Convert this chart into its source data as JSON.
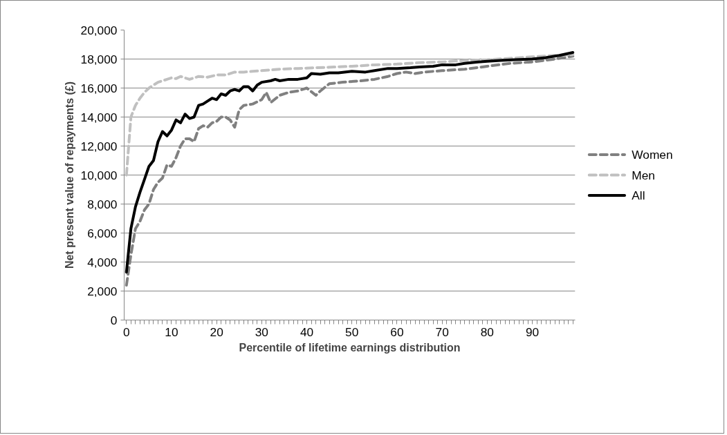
{
  "chart_data": {
    "type": "line",
    "xlabel": "Percentile of lifetime earnings distribution",
    "ylabel": "Net present value of repayments (£)",
    "xlim": [
      -0.5,
      99.5
    ],
    "ylim": [
      0,
      20000
    ],
    "yticks": [
      {
        "value": 0,
        "label": "0"
      },
      {
        "value": 2000,
        "label": "2,000"
      },
      {
        "value": 4000,
        "label": "4,000"
      },
      {
        "value": 6000,
        "label": "6,000"
      },
      {
        "value": 8000,
        "label": "8,000"
      },
      {
        "value": 10000,
        "label": "10,000"
      },
      {
        "value": 12000,
        "label": "12,000"
      },
      {
        "value": 14000,
        "label": "14,000"
      },
      {
        "value": 16000,
        "label": "16,000"
      },
      {
        "value": 18000,
        "label": "18,000"
      },
      {
        "value": 20000,
        "label": "20,000"
      }
    ],
    "xticks": [
      0,
      {
        "value": 1,
        "label": null
      },
      {
        "value": 2,
        "label": null
      },
      {
        "value": 3,
        "label": null
      },
      {
        "value": 4,
        "label": null
      },
      {
        "value": 5,
        "label": null
      },
      {
        "value": 6,
        "label": null
      },
      {
        "value": 7,
        "label": null
      },
      {
        "value": 8,
        "label": null
      },
      {
        "value": 9,
        "label": null
      },
      10,
      {
        "value": 11,
        "label": null
      },
      {
        "value": 12,
        "label": null
      },
      {
        "value": 13,
        "label": null
      },
      {
        "value": 14,
        "label": null
      },
      {
        "value": 15,
        "label": null
      },
      {
        "value": 16,
        "label": null
      },
      {
        "value": 17,
        "label": null
      },
      {
        "value": 18,
        "label": null
      },
      {
        "value": 19,
        "label": null
      },
      20,
      {
        "value": 21,
        "label": null
      },
      {
        "value": 22,
        "label": null
      },
      {
        "value": 23,
        "label": null
      },
      {
        "value": 24,
        "label": null
      },
      {
        "value": 25,
        "label": null
      },
      {
        "value": 26,
        "label": null
      },
      {
        "value": 27,
        "label": null
      },
      {
        "value": 28,
        "label": null
      },
      {
        "value": 29,
        "label": null
      },
      30,
      {
        "value": 31,
        "label": null
      },
      {
        "value": 32,
        "label": null
      },
      {
        "value": 33,
        "label": null
      },
      {
        "value": 34,
        "label": null
      },
      {
        "value": 35,
        "label": null
      },
      {
        "value": 36,
        "label": null
      },
      {
        "value": 37,
        "label": null
      },
      {
        "value": 38,
        "label": null
      },
      {
        "value": 39,
        "label": null
      },
      40,
      {
        "value": 41,
        "label": null
      },
      {
        "value": 42,
        "label": null
      },
      {
        "value": 43,
        "label": null
      },
      {
        "value": 44,
        "label": null
      },
      {
        "value": 45,
        "label": null
      },
      {
        "value": 46,
        "label": null
      },
      {
        "value": 47,
        "label": null
      },
      {
        "value": 48,
        "label": null
      },
      {
        "value": 49,
        "label": null
      },
      50,
      {
        "value": 51,
        "label": null
      },
      {
        "value": 52,
        "label": null
      },
      {
        "value": 53,
        "label": null
      },
      {
        "value": 54,
        "label": null
      },
      {
        "value": 55,
        "label": null
      },
      {
        "value": 56,
        "label": null
      },
      {
        "value": 57,
        "label": null
      },
      {
        "value": 58,
        "label": null
      },
      {
        "value": 59,
        "label": null
      },
      60,
      {
        "value": 61,
        "label": null
      },
      {
        "value": 62,
        "label": null
      },
      {
        "value": 63,
        "label": null
      },
      {
        "value": 64,
        "label": null
      },
      {
        "value": 65,
        "label": null
      },
      {
        "value": 66,
        "label": null
      },
      {
        "value": 67,
        "label": null
      },
      {
        "value": 68,
        "label": null
      },
      {
        "value": 69,
        "label": null
      },
      70,
      {
        "value": 71,
        "label": null
      },
      {
        "value": 72,
        "label": null
      },
      {
        "value": 73,
        "label": null
      },
      {
        "value": 74,
        "label": null
      },
      {
        "value": 75,
        "label": null
      },
      {
        "value": 76,
        "label": null
      },
      {
        "value": 77,
        "label": null
      },
      {
        "value": 78,
        "label": null
      },
      {
        "value": 79,
        "label": null
      },
      80,
      {
        "value": 81,
        "label": null
      },
      {
        "value": 82,
        "label": null
      },
      {
        "value": 83,
        "label": null
      },
      {
        "value": 84,
        "label": null
      },
      {
        "value": 85,
        "label": null
      },
      {
        "value": 86,
        "label": null
      },
      {
        "value": 87,
        "label": null
      },
      {
        "value": 88,
        "label": null
      },
      {
        "value": 89,
        "label": null
      },
      90,
      {
        "value": 91,
        "label": null
      },
      {
        "value": 92,
        "label": null
      },
      {
        "value": 93,
        "label": null
      },
      {
        "value": 94,
        "label": null
      },
      {
        "value": 95,
        "label": null
      },
      {
        "value": 96,
        "label": null
      },
      {
        "value": 97,
        "label": null
      },
      {
        "value": 98,
        "label": null
      },
      {
        "value": 99,
        "label": null
      }
    ],
    "grid": "y",
    "legend": "right",
    "series": [
      {
        "name": "Women",
        "color": "#808080",
        "line_style": "dashed",
        "x": [
          0,
          1,
          2,
          3,
          4,
          5,
          6,
          7,
          8,
          9,
          10,
          11,
          12,
          13,
          14,
          15,
          16,
          17,
          18,
          19,
          20,
          21,
          22,
          23,
          24,
          25,
          26,
          28,
          30,
          31,
          32,
          34,
          36,
          38,
          40,
          42,
          43,
          45,
          48,
          52,
          55,
          58,
          60,
          62,
          64,
          66,
          70,
          75,
          80,
          85,
          90,
          95,
          99
        ],
        "values": [
          2400,
          4500,
          6300,
          6800,
          7600,
          8000,
          9000,
          9500,
          9800,
          10700,
          10600,
          11200,
          12000,
          12500,
          12500,
          12300,
          13200,
          13400,
          13300,
          13600,
          13700,
          14000,
          14000,
          13800,
          13300,
          14500,
          14800,
          14900,
          15200,
          15700,
          15000,
          15500,
          15700,
          15800,
          16000,
          15500,
          15800,
          16300,
          16400,
          16500,
          16600,
          16800,
          17000,
          17100,
          17000,
          17100,
          17200,
          17300,
          17500,
          17700,
          17800,
          18000,
          18200
        ]
      },
      {
        "name": "Men",
        "color": "#c0c0c0",
        "line_style": "dashed",
        "x": [
          0,
          1,
          2,
          3,
          4,
          5,
          6,
          7,
          8,
          9,
          10,
          11,
          12,
          13,
          14,
          16,
          18,
          20,
          22,
          24,
          26,
          28,
          30,
          34,
          38,
          42,
          46,
          50,
          55,
          60,
          65,
          70,
          75,
          80,
          85,
          90,
          95,
          99
        ],
        "values": [
          10000,
          14000,
          14800,
          15300,
          15700,
          16000,
          16200,
          16400,
          16500,
          16600,
          16700,
          16650,
          16800,
          16700,
          16600,
          16800,
          16750,
          16900,
          16900,
          17100,
          17100,
          17150,
          17200,
          17300,
          17350,
          17400,
          17450,
          17500,
          17600,
          17650,
          17750,
          17800,
          17900,
          17950,
          18050,
          18150,
          18250,
          18300
        ]
      },
      {
        "name": "All",
        "color": "#000000",
        "line_style": "solid",
        "x": [
          0,
          1,
          2,
          3,
          4,
          5,
          6,
          7,
          8,
          9,
          10,
          11,
          12,
          13,
          14,
          15,
          16,
          17,
          18,
          19,
          20,
          21,
          22,
          23,
          24,
          25,
          26,
          27,
          28,
          29,
          30,
          32,
          33,
          34,
          36,
          38,
          40,
          41,
          43,
          45,
          47,
          50,
          53,
          55,
          58,
          60,
          63,
          65,
          68,
          70,
          73,
          75,
          78,
          80,
          83,
          86,
          90,
          93,
          96,
          99
        ],
        "values": [
          3300,
          6300,
          7800,
          8800,
          9700,
          10600,
          11000,
          12300,
          13000,
          12700,
          13100,
          13800,
          13600,
          14200,
          13900,
          14000,
          14800,
          14900,
          15100,
          15300,
          15200,
          15600,
          15500,
          15800,
          15900,
          15800,
          16100,
          16100,
          15800,
          16200,
          16400,
          16500,
          16600,
          16500,
          16600,
          16600,
          16700,
          17000,
          16950,
          17050,
          17050,
          17150,
          17100,
          17200,
          17350,
          17350,
          17400,
          17450,
          17500,
          17600,
          17600,
          17700,
          17800,
          17850,
          17900,
          17950,
          18000,
          18100,
          18250,
          18450
        ]
      }
    ]
  }
}
